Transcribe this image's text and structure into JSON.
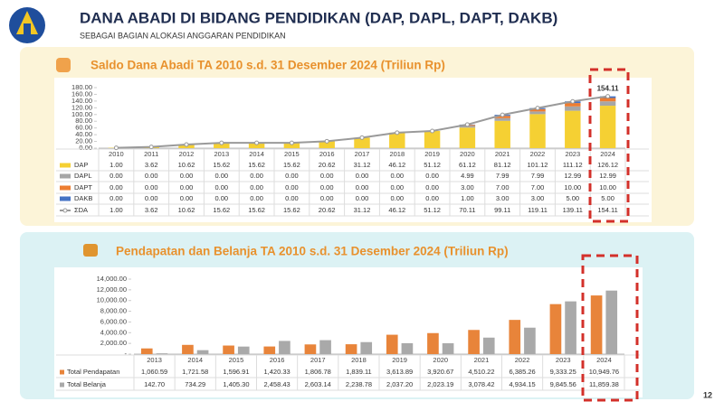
{
  "header": {
    "title": "DANA ABADI DI BIDANG PENDIDIKAN (DAP, DAPL, DAPT, DAKB)",
    "subtitle": "SEBAGAI BAGIAN ALOKASI ANGGARAN PENDIDIKAN"
  },
  "page_number": "12",
  "chart_data": [
    {
      "type": "bar",
      "stacked": true,
      "title": "Saldo Dana Abadi TA 2010 s.d. 31 Desember 2024 (Triliun Rp)",
      "categories": [
        "2010",
        "2011",
        "2012",
        "2013",
        "2014",
        "2015",
        "2016",
        "2017",
        "2018",
        "2019",
        "2020",
        "2021",
        "2022",
        "2023",
        "2024"
      ],
      "ylim": [
        0,
        180
      ],
      "yticks": [
        {
          "value": 0,
          "label": "0.00"
        },
        {
          "value": 20,
          "label": "20.00"
        },
        {
          "value": 40,
          "label": "40.00"
        },
        {
          "value": 60,
          "label": "60.00"
        },
        {
          "value": 80,
          "label": "80.00"
        },
        {
          "value": 100,
          "label": "100.00"
        },
        {
          "value": 120,
          "label": "120.00"
        },
        {
          "value": 140,
          "label": "140.00"
        },
        {
          "value": 160,
          "label": "160.00"
        },
        {
          "value": 180,
          "label": "180.00"
        }
      ],
      "series": [
        {
          "name": "DAP",
          "type": "bar",
          "color": "#f5d033",
          "values": [
            1.0,
            3.62,
            10.62,
            15.62,
            15.62,
            15.62,
            20.62,
            31.12,
            46.12,
            51.12,
            61.12,
            81.12,
            101.12,
            111.12,
            126.12
          ],
          "value_labels": [
            "1.00",
            "3.62",
            "10.62",
            "15.62",
            "15.62",
            "15.62",
            "20.62",
            "31.12",
            "46.12",
            "51.12",
            "61.12",
            "81.12",
            "101.12",
            "111.12",
            "126.12"
          ]
        },
        {
          "name": "DAPL",
          "type": "bar",
          "color": "#a6a6a6",
          "values": [
            0,
            0,
            0,
            0,
            0,
            0,
            0,
            0,
            0,
            0,
            4.99,
            7.99,
            7.99,
            12.99,
            12.99
          ],
          "value_labels": [
            "0.00",
            "0.00",
            "0.00",
            "0.00",
            "0.00",
            "0.00",
            "0.00",
            "0.00",
            "0.00",
            "0.00",
            "4.99",
            "7.99",
            "7.99",
            "12.99",
            "12.99"
          ]
        },
        {
          "name": "DAPT",
          "type": "bar",
          "color": "#ed7d31",
          "values": [
            0,
            0,
            0,
            0,
            0,
            0,
            0,
            0,
            0,
            0,
            3,
            7,
            7,
            10,
            10
          ],
          "value_labels": [
            "0.00",
            "0.00",
            "0.00",
            "0.00",
            "0.00",
            "0.00",
            "0.00",
            "0.00",
            "0.00",
            "0.00",
            "3.00",
            "7.00",
            "7.00",
            "10.00",
            "10.00"
          ]
        },
        {
          "name": "DAKB",
          "type": "bar",
          "color": "#4472c4",
          "values": [
            0,
            0,
            0,
            0,
            0,
            0,
            0,
            0,
            0,
            0,
            1,
            3,
            3,
            5,
            5
          ],
          "value_labels": [
            "0.00",
            "0.00",
            "0.00",
            "0.00",
            "0.00",
            "0.00",
            "0.00",
            "0.00",
            "0.00",
            "0.00",
            "1.00",
            "3.00",
            "3.00",
            "5.00",
            "5.00"
          ]
        },
        {
          "name": "ΣDA",
          "type": "line",
          "color": "#9a9a9a",
          "values": [
            1.0,
            3.62,
            10.62,
            15.62,
            15.62,
            15.62,
            20.62,
            31.12,
            46.12,
            51.12,
            70.11,
            99.11,
            119.11,
            139.11,
            154.11
          ],
          "value_labels": [
            "1.00",
            "3.62",
            "10.62",
            "15.62",
            "15.62",
            "15.62",
            "20.62",
            "31.12",
            "46.12",
            "51.12",
            "70.11",
            "99.11",
            "119.11",
            "139.11",
            "154.11"
          ]
        }
      ]
    },
    {
      "type": "bar",
      "stacked": false,
      "title": "Pendapatan dan Belanja TA 2010 s.d. 31 Desember 2024 (Triliun Rp)",
      "categories": [
        "2013",
        "2014",
        "2015",
        "2016",
        "2017",
        "2018",
        "2019",
        "2020",
        "2021",
        "2022",
        "2023",
        "2024"
      ],
      "ylim": [
        0,
        14000
      ],
      "yticks": [
        {
          "value": 0,
          "label": "-"
        },
        {
          "value": 2000,
          "label": "2,000.00"
        },
        {
          "value": 4000,
          "label": "4,000.00"
        },
        {
          "value": 6000,
          "label": "6,000.00"
        },
        {
          "value": 8000,
          "label": "8,000.00"
        },
        {
          "value": 10000,
          "label": "10,000.00"
        },
        {
          "value": 12000,
          "label": "12,000.00"
        },
        {
          "value": 14000,
          "label": "14,000.00"
        }
      ],
      "series": [
        {
          "name": "Total Pendapatan",
          "type": "bar",
          "color": "#e8843a",
          "values": [
            1060.59,
            1721.58,
            1596.91,
            1420.33,
            1806.78,
            1839.11,
            3613.89,
            3920.67,
            4510.22,
            6385.26,
            9333.25,
            10949.76
          ],
          "value_labels": [
            "1,060.59",
            "1,721.58",
            "1,596.91",
            "1,420.33",
            "1,806.78",
            "1,839.11",
            "3,613.89",
            "3,920.67",
            "4,510.22",
            "6,385.26",
            "9,333.25",
            "10,949.76"
          ]
        },
        {
          "name": "Total Belanja",
          "type": "bar",
          "color": "#a9a9a9",
          "values": [
            142.7,
            734.29,
            1405.3,
            2458.43,
            2603.14,
            2238.78,
            2037.2,
            2023.19,
            3078.42,
            4934.15,
            9845.56,
            11859.38
          ],
          "value_labels": [
            "142.70",
            "734.29",
            "1,405.30",
            "2,458.43",
            "2,603.14",
            "2,238.78",
            "2,037.20",
            "2,023.19",
            "3,078.42",
            "4,934.15",
            "9,845.56",
            "11,859.38"
          ]
        }
      ]
    }
  ]
}
